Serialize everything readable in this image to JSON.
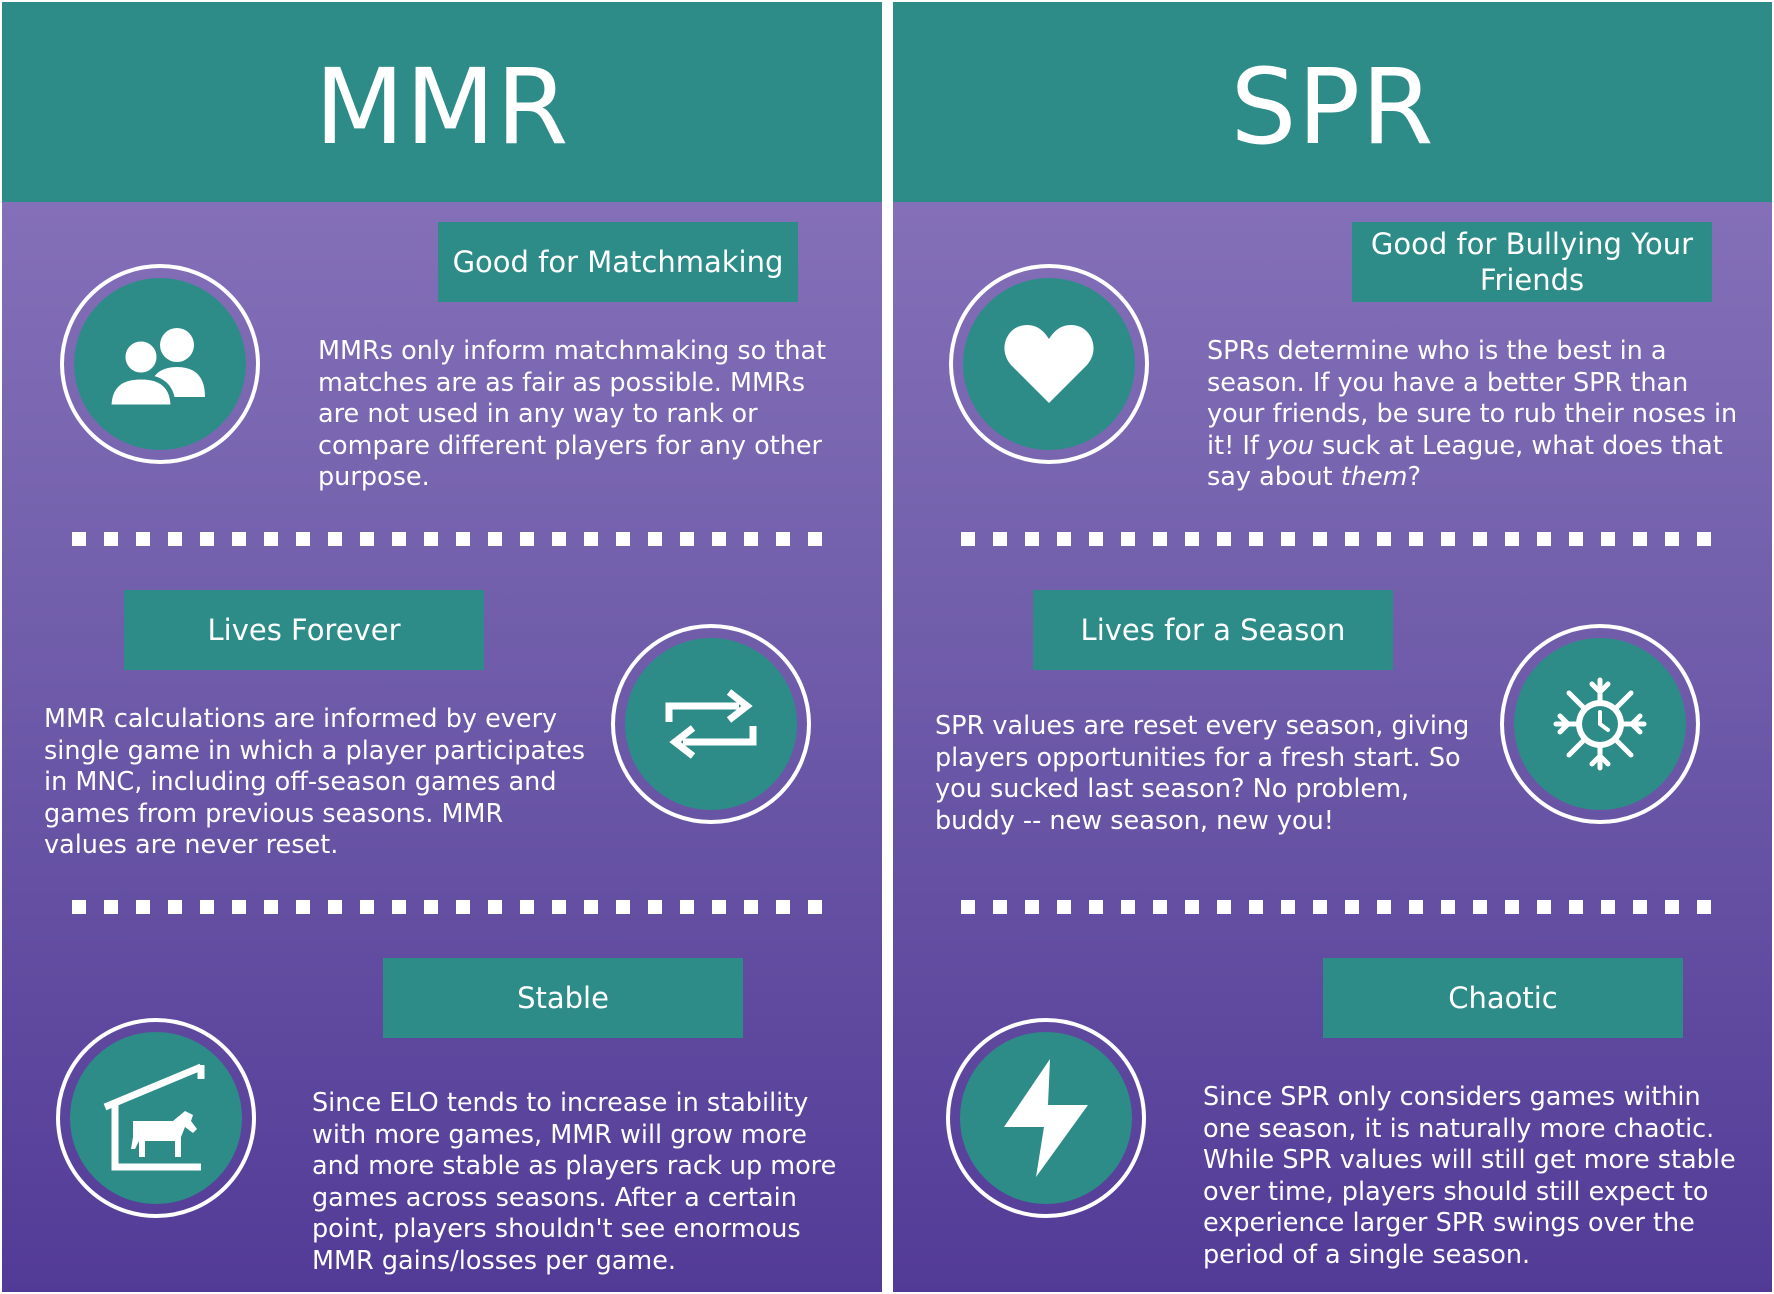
{
  "colors": {
    "teal": "#2e8c88",
    "purple_top": "#8d78bf",
    "purple_bottom": "#523b97",
    "text": "#ffffff"
  },
  "mmr": {
    "title": "MMR",
    "sections": [
      {
        "label": "Good for Matchmaking",
        "icon": "users-icon",
        "text": "MMRs only inform matchmaking so that matches are as fair as possible. MMRs are not used in any way to rank or compare different players for any other purpose."
      },
      {
        "label": "Lives Forever",
        "icon": "repeat-arrows-icon",
        "text": "MMR calculations are informed by every single game in which a player participates in MNC, including off-season games and games from previous seasons. MMR values are never reset."
      },
      {
        "label": "Stable",
        "icon": "horse-stable-icon",
        "text": "Since ELO tends to increase in stability with more games, MMR will grow more and more stable as players rack up more games across seasons. After a certain point, players shouldn't see enormous MMR gains/losses per game."
      }
    ]
  },
  "spr": {
    "title": "SPR",
    "sections": [
      {
        "label": "Good for Bullying Your Friends",
        "icon": "heart-icon",
        "text_parts": [
          "SPRs determine who is the best in a season. If you have a better SPR than your friends, be sure to rub their noses in it! If ",
          "you",
          " suck at League, what does that say about ",
          "them",
          "?"
        ]
      },
      {
        "label": "Lives for a Season",
        "icon": "snowflake-clock-icon",
        "text": "SPR values are reset every season, giving players opportunities for a fresh start. So you sucked last season? No problem, buddy -- new season, new you!"
      },
      {
        "label": "Chaotic",
        "icon": "lightning-bolt-icon",
        "text": "Since SPR only considers games within one season, it is naturally more chaotic. While SPR values will still get more stable over time, players should still expect to experience larger SPR swings over the period of a single season."
      }
    ]
  }
}
